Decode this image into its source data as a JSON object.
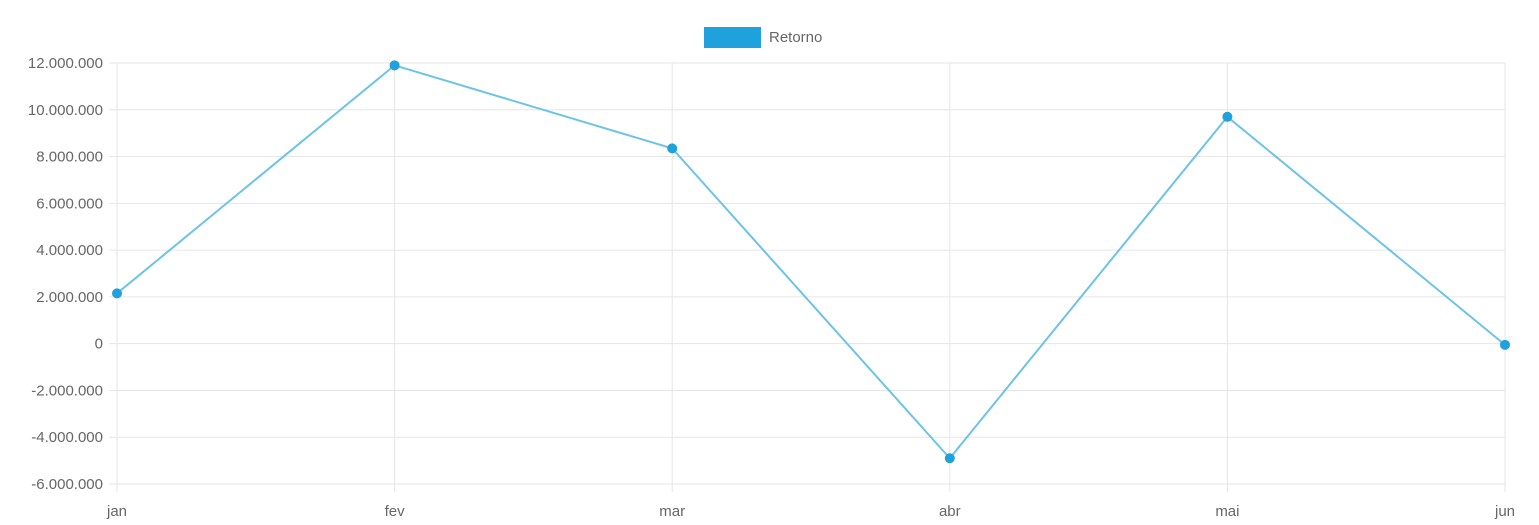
{
  "chart_data": {
    "type": "line",
    "categories": [
      "jan",
      "fev",
      "mar",
      "abr",
      "mai",
      "jun"
    ],
    "series": [
      {
        "name": "Retorno",
        "values": [
          2150000,
          11900000,
          8350000,
          -4900000,
          9700000,
          -50000
        ]
      }
    ],
    "y_ticks": [
      "12.000.000",
      "10.000.000",
      "8.000.000",
      "6.000.000",
      "4.000.000",
      "2.000.000",
      "0",
      "-2.000.000",
      "-4.000.000",
      "-6.000.000"
    ],
    "ylim": [
      -6000000,
      12000000
    ],
    "grid": true,
    "legend_position": "top-center",
    "colors": {
      "line": "#6cc3e8",
      "point": "#1ea1dc",
      "legend_swatch": "#1ea1dc",
      "grid": "#e6e6e6",
      "axis_text": "#666666"
    }
  }
}
